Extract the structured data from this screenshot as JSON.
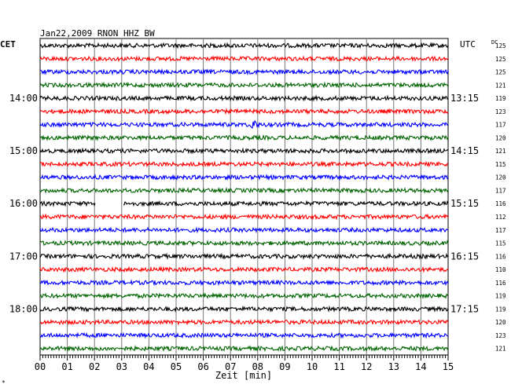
{
  "chart_data": {
    "type": "line",
    "title": "Jan22,2009   RNON HHZ BW",
    "xlabel": "Zeit [min]",
    "left_timezone": "CET",
    "right_timezone": "UTC",
    "dc_header": "DC",
    "x_ticks": [
      "00",
      "01",
      "02",
      "03",
      "04",
      "05",
      "06",
      "07",
      "08",
      "09",
      "10",
      "11",
      "12",
      "13",
      "14",
      "15"
    ],
    "xlim": [
      0,
      15
    ],
    "left_hour_labels": [
      {
        "row": 4,
        "label": "14:00"
      },
      {
        "row": 8,
        "label": "15:00"
      },
      {
        "row": 12,
        "label": "16:00"
      },
      {
        "row": 16,
        "label": "17:00"
      },
      {
        "row": 20,
        "label": "18:00"
      }
    ],
    "right_hour_labels": [
      {
        "row": 4,
        "label": "13:15"
      },
      {
        "row": 8,
        "label": "14:15"
      },
      {
        "row": 12,
        "label": "15:15"
      },
      {
        "row": 16,
        "label": "16:15"
      },
      {
        "row": 20,
        "label": "17:15"
      }
    ],
    "dc_values": [
      "125",
      "125",
      "125",
      "121",
      "119",
      "123",
      "117",
      "120",
      "121",
      "115",
      "120",
      "117",
      "116",
      "112",
      "117",
      "115",
      "116",
      "110",
      "116",
      "119",
      "119",
      "120",
      "123",
      "121"
    ],
    "trace_colors": [
      "#000000",
      "#ff0000",
      "#0000ff",
      "#006400"
    ],
    "gaps": [
      {
        "row": 12,
        "start_min": 2.05,
        "end_min": 3.05
      }
    ],
    "events": [
      {
        "row": 6,
        "at_min": 7.85
      }
    ],
    "footer_mark": "*"
  }
}
